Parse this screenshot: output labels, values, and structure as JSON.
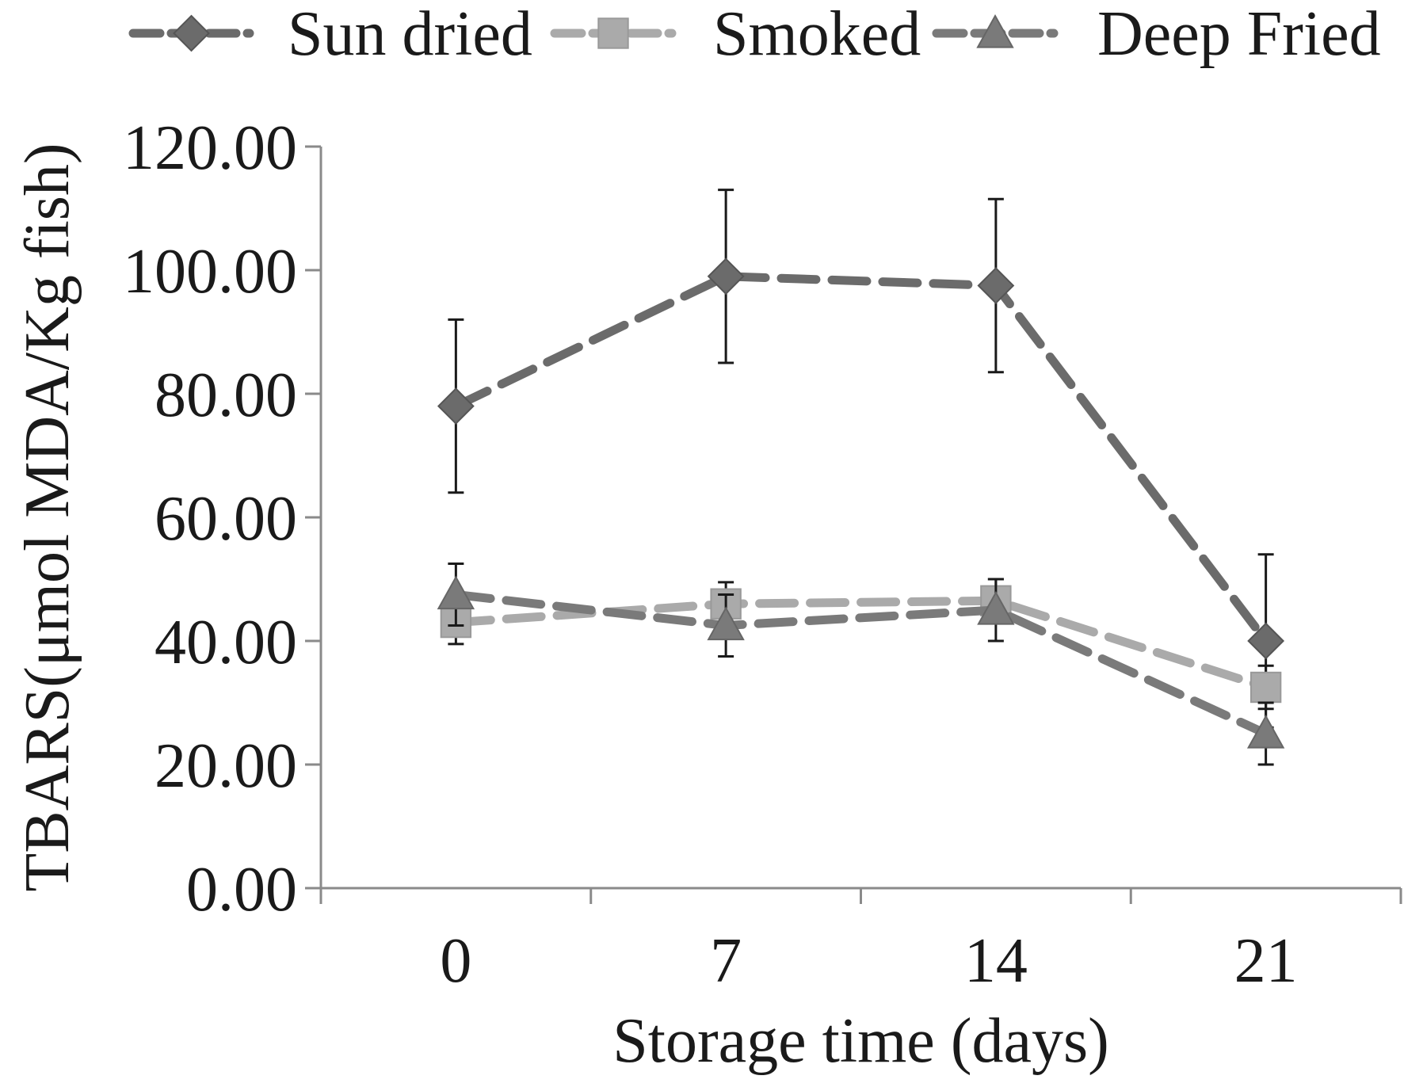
{
  "chart_data": {
    "type": "line",
    "categories": [
      "0",
      "7",
      "14",
      "21"
    ],
    "xlabel": "Storage time (days)",
    "ylabel": "TBARS(μmol MDA/Kg fish)",
    "ylim": [
      0,
      120
    ],
    "yticks": [
      "0.00",
      "20.00",
      "40.00",
      "60.00",
      "80.00",
      "100.00",
      "120.00"
    ],
    "grid": false,
    "legend_position": "top",
    "series": [
      {
        "name": "Sun dried",
        "values": [
          78.0,
          99.0,
          97.5,
          40.0
        ],
        "errors": [
          14.0,
          14.0,
          14.0,
          14.0
        ],
        "color": "#6b6b6b",
        "marker": "diamond"
      },
      {
        "name": "Smoked",
        "values": [
          43.0,
          46.0,
          46.5,
          32.5
        ],
        "errors": [
          3.5,
          3.5,
          3.5,
          3.5
        ],
        "color": "#aaaaaa",
        "marker": "square"
      },
      {
        "name": "Deep Fried",
        "values": [
          47.5,
          42.5,
          45.0,
          25.0
        ],
        "errors": [
          5.0,
          5.0,
          5.0,
          5.0
        ],
        "color": "#7a7a7a",
        "marker": "triangle"
      }
    ]
  }
}
